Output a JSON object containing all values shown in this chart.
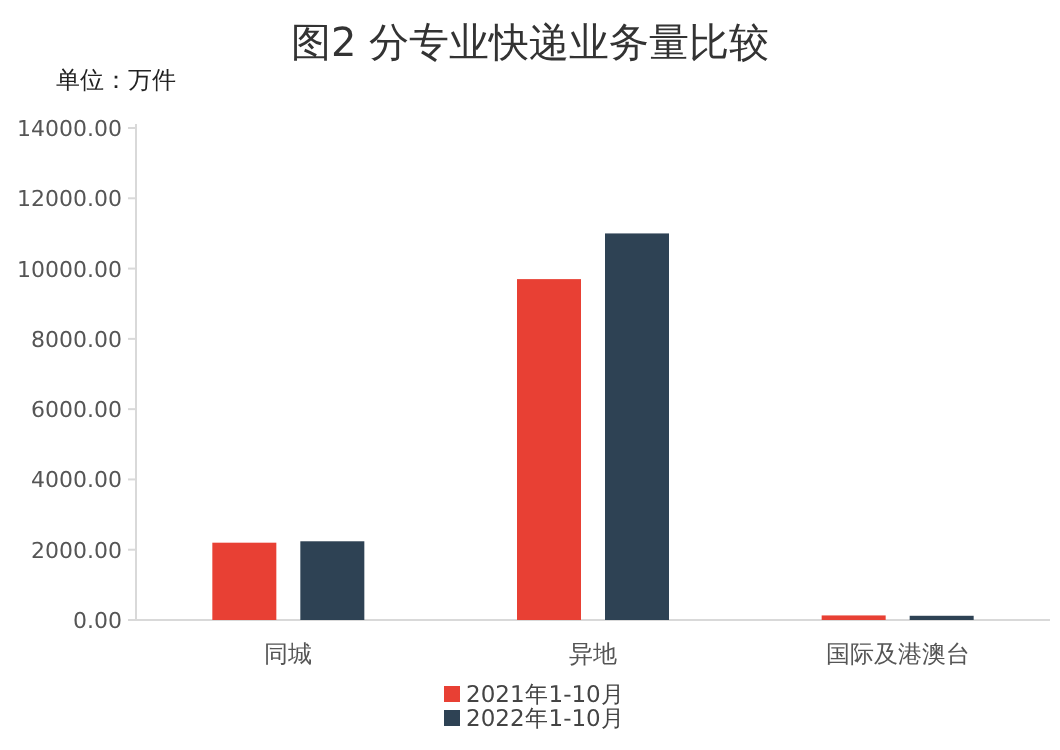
{
  "chart_data": {
    "type": "bar",
    "title": "图2 分专业快递业务量比较",
    "ylabel": "单位：万件",
    "categories": [
      "同城",
      "异地",
      "国际及港澳台"
    ],
    "series": [
      {
        "name": "2021年1-10月",
        "color": "#e84034",
        "values": [
          2200,
          9700,
          130
        ]
      },
      {
        "name": "2022年1-10月",
        "color": "#2e4254",
        "values": [
          2240,
          11000,
          120
        ]
      }
    ],
    "ylim": [
      0,
      14000
    ],
    "yticks": [
      {
        "value": 0,
        "label": "0.00"
      },
      {
        "value": 2000,
        "label": "2000.00"
      },
      {
        "value": 4000,
        "label": "4000.00"
      },
      {
        "value": 6000,
        "label": "6000.00"
      },
      {
        "value": 8000,
        "label": "8000.00"
      },
      {
        "value": 10000,
        "label": "10000.00"
      },
      {
        "value": 12000,
        "label": "12000.00"
      },
      {
        "value": 14000,
        "label": "14000.00"
      }
    ],
    "legend": "bottom"
  }
}
